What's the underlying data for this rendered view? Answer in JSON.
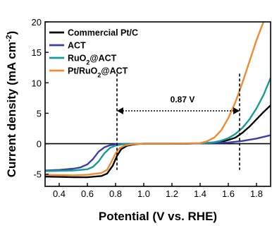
{
  "chart_data": {
    "type": "line",
    "xlabel": "Potential (V vs. RHE)",
    "ylabel_main": "Current density (mA cm",
    "ylabel_sup": "-2",
    "ylabel_close": ")",
    "xlim": [
      0.3,
      1.9
    ],
    "ylim": [
      -7,
      20
    ],
    "xticks": [
      0.4,
      0.6,
      0.8,
      1.0,
      1.2,
      1.4,
      1.6,
      1.8
    ],
    "xtick_labels": [
      "0.4",
      "0.6",
      "0.8",
      "1.0",
      "1.2",
      "1.4",
      "1.6",
      "1.8"
    ],
    "yticks": [
      -5,
      0,
      5,
      10,
      15,
      20
    ],
    "ytick_labels": [
      "-5",
      "0",
      "5",
      "10",
      "15",
      "20"
    ],
    "legend_position": "top-left",
    "grid": false,
    "zero_line": true,
    "series": [
      {
        "name": "Commercial Pt/C",
        "legend_parts": {
          "main": "Commercial Pt/C",
          "sub": "",
          "tail": ""
        },
        "color": "#000000",
        "x": [
          0.3,
          0.4,
          0.5,
          0.6,
          0.7,
          0.74,
          0.78,
          0.81,
          0.84,
          0.88,
          0.92,
          0.96,
          1.0,
          1.1,
          1.2,
          1.3,
          1.4,
          1.5,
          1.55,
          1.6,
          1.65,
          1.7,
          1.75,
          1.8,
          1.85,
          1.9
        ],
        "y": [
          -5.4,
          -5.45,
          -5.5,
          -5.5,
          -5.3,
          -4.9,
          -3.6,
          -2.0,
          -0.9,
          -0.35,
          -0.15,
          -0.05,
          0.0,
          0.0,
          0.0,
          0.0,
          0.05,
          0.15,
          0.3,
          0.6,
          1.0,
          1.8,
          2.8,
          4.0,
          5.2,
          6.3
        ]
      },
      {
        "name": "ACT",
        "legend_parts": {
          "main": "ACT",
          "sub": "",
          "tail": ""
        },
        "color": "#3a3fa8",
        "x": [
          0.3,
          0.4,
          0.5,
          0.55,
          0.6,
          0.64,
          0.68,
          0.72,
          0.76,
          0.8,
          0.9,
          1.0,
          1.2,
          1.4,
          1.5,
          1.6,
          1.7,
          1.8,
          1.9
        ],
        "y": [
          -4.4,
          -4.3,
          -4.1,
          -3.9,
          -3.4,
          -2.5,
          -1.3,
          -0.6,
          -0.25,
          -0.1,
          -0.03,
          0.0,
          0.0,
          0.05,
          0.1,
          0.2,
          0.45,
          0.85,
          1.4
        ]
      },
      {
        "name": "RuO2@ACT",
        "legend_parts": {
          "main": "RuO",
          "sub": "2",
          "tail": "@ACT"
        },
        "color": "#1a9a96",
        "x": [
          0.3,
          0.4,
          0.5,
          0.6,
          0.64,
          0.68,
          0.72,
          0.76,
          0.8,
          0.85,
          0.9,
          1.0,
          1.2,
          1.4,
          1.5,
          1.55,
          1.6,
          1.65,
          1.7,
          1.75,
          1.8,
          1.85,
          1.9
        ],
        "y": [
          -4.5,
          -4.45,
          -4.4,
          -4.2,
          -3.8,
          -2.9,
          -1.6,
          -0.7,
          -0.3,
          -0.1,
          -0.03,
          0.0,
          0.0,
          0.05,
          0.25,
          0.5,
          0.9,
          1.6,
          2.6,
          4.0,
          5.8,
          8.0,
          10.8
        ]
      },
      {
        "name": "Pt/RuO2@ACT",
        "legend_parts": {
          "main": "Pt/RuO",
          "sub": "2",
          "tail": "@ACT"
        },
        "color": "#f08a32",
        "x": [
          0.3,
          0.4,
          0.5,
          0.6,
          0.7,
          0.74,
          0.77,
          0.8,
          0.83,
          0.87,
          0.92,
          1.0,
          1.2,
          1.4,
          1.45,
          1.5,
          1.55,
          1.6,
          1.65,
          1.7,
          1.75,
          1.8,
          1.85
        ],
        "y": [
          -5.1,
          -5.15,
          -5.2,
          -5.1,
          -4.8,
          -4.3,
          -3.0,
          -1.6,
          -0.7,
          -0.25,
          -0.08,
          0.0,
          0.0,
          0.1,
          0.4,
          1.0,
          2.2,
          4.2,
          6.8,
          10.0,
          13.5,
          17.0,
          20.0
        ]
      }
    ],
    "annotation": {
      "label": "0.87 V",
      "x_start": 0.81,
      "x_end": 1.68,
      "y": 5.4,
      "marker_x": [
        0.81,
        1.68
      ],
      "marker_ylim": [
        -4.3,
        11.5
      ]
    }
  }
}
